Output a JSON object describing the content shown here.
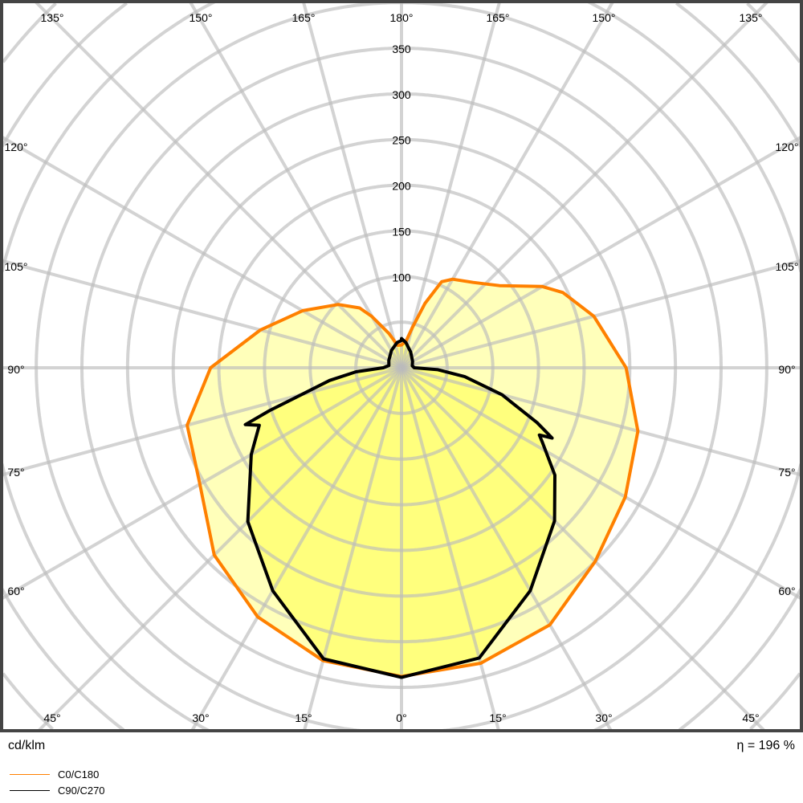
{
  "chart_data": {
    "type": "polar-line",
    "unit": "cd/klm",
    "efficiency": "η = 196 %",
    "radial_ticks": [
      100,
      150,
      200,
      250,
      300,
      350
    ],
    "radial_grid_step": 50,
    "angle_ticks_top": [
      "135°",
      "150°",
      "165°",
      "180°",
      "165°",
      "150°",
      "135°"
    ],
    "angle_ticks_left": [
      "120°",
      "105°",
      "90°",
      "75°",
      "60°"
    ],
    "angle_ticks_right": [
      "120°",
      "105°",
      "90°",
      "75°",
      "60°"
    ],
    "angle_ticks_bottom": [
      "45°",
      "30°",
      "15°",
      "0°",
      "15°",
      "30°",
      "45°"
    ],
    "grid": true,
    "legend_position": "bottom-left",
    "series": [
      {
        "name": "C0/C180",
        "color": "#ff8000",
        "fill": "#ffff66",
        "right": [
          [
            0,
            338
          ],
          [
            15,
            335
          ],
          [
            30,
            325
          ],
          [
            45,
            300
          ],
          [
            60,
            283
          ],
          [
            75,
            268
          ],
          [
            90,
            246
          ],
          [
            105,
            218
          ],
          [
            115,
            195
          ],
          [
            120,
            178
          ],
          [
            130,
            140
          ],
          [
            140,
            122
          ],
          [
            150,
            112
          ],
          [
            155,
            104
          ],
          [
            160,
            75
          ],
          [
            165,
            45
          ],
          [
            170,
            30
          ],
          [
            180,
            25
          ]
        ],
        "left": [
          [
            0,
            338
          ],
          [
            15,
            332
          ],
          [
            30,
            315
          ],
          [
            45,
            290
          ],
          [
            60,
            255
          ],
          [
            75,
            243
          ],
          [
            90,
            209
          ],
          [
            105,
            160
          ],
          [
            120,
            125
          ],
          [
            135,
            98
          ],
          [
            145,
            80
          ],
          [
            150,
            65
          ],
          [
            160,
            40
          ],
          [
            170,
            25
          ],
          [
            180,
            25
          ]
        ]
      },
      {
        "name": "C90/C270",
        "color": "#000000",
        "fill": "#ffff55",
        "right": [
          [
            0,
            339
          ],
          [
            15,
            329
          ],
          [
            30,
            282
          ],
          [
            45,
            237
          ],
          [
            55,
            205
          ],
          [
            62,
            175
          ],
          [
            64,
            168
          ],
          [
            65,
            182
          ],
          [
            68,
            160
          ],
          [
            75,
            114
          ],
          [
            82,
            70
          ],
          [
            87,
            40
          ],
          [
            90,
            14
          ],
          [
            100,
            12
          ],
          [
            120,
            14
          ],
          [
            150,
            20
          ],
          [
            170,
            28
          ],
          [
            180,
            32
          ]
        ],
        "left": [
          [
            0,
            339
          ],
          [
            15,
            330
          ],
          [
            30,
            282
          ],
          [
            45,
            238
          ],
          [
            60,
            190
          ],
          [
            68,
            168
          ],
          [
            70,
            182
          ],
          [
            72,
            152
          ],
          [
            80,
            80
          ],
          [
            85,
            50
          ],
          [
            90,
            20
          ],
          [
            100,
            14
          ],
          [
            120,
            16
          ],
          [
            150,
            22
          ],
          [
            170,
            28
          ],
          [
            180,
            30
          ]
        ]
      }
    ]
  }
}
